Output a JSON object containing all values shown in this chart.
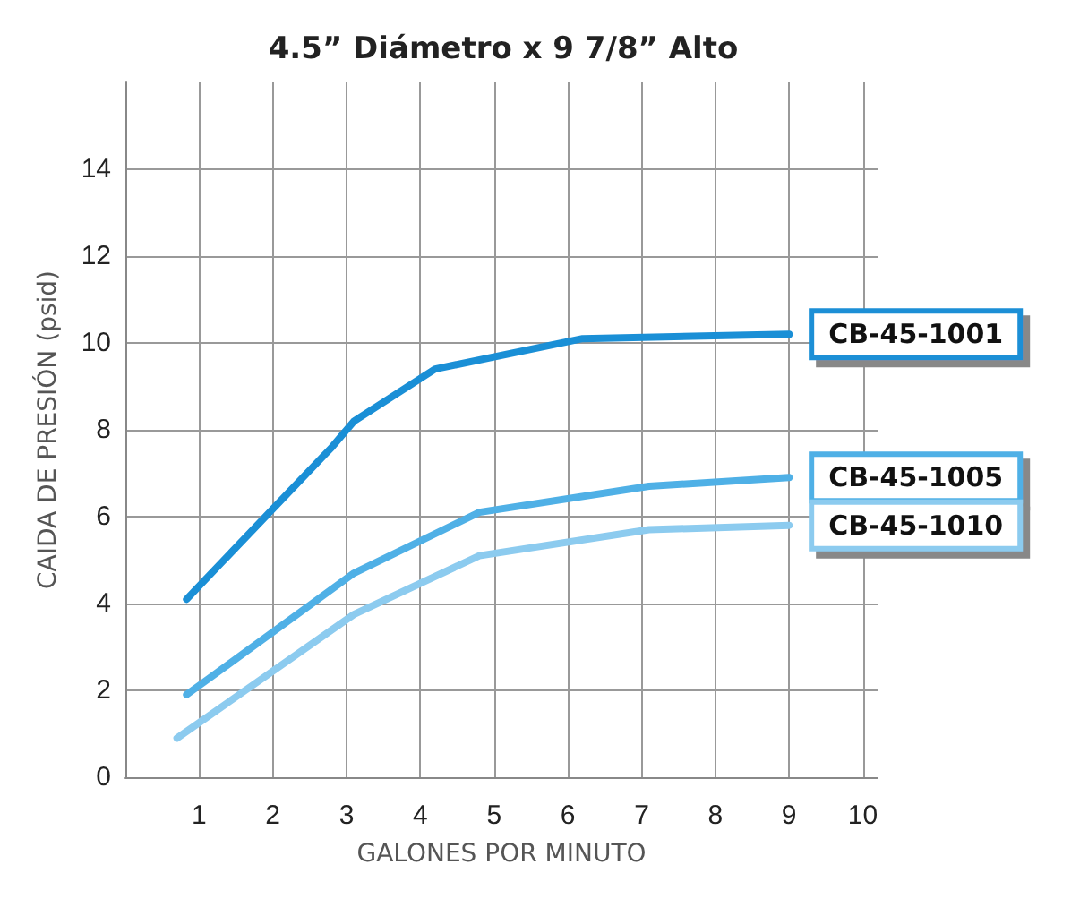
{
  "chart_data": {
    "type": "line",
    "title": "4.5” Diámetro x 9 7/8” Alto",
    "xlabel": "GALONES POR MINUTO",
    "ylabel": "CAIDA DE PRESIÓN (psid)",
    "xlim": [
      0,
      10.2
    ],
    "xticks": [
      1,
      2,
      3,
      4,
      5,
      6,
      7,
      8,
      9,
      10
    ],
    "ylim": [
      0,
      16
    ],
    "yticks": [
      0,
      2,
      4,
      6,
      8,
      10,
      12,
      14
    ],
    "grid": true,
    "legend": false,
    "marker": "none",
    "line_style": "solid",
    "series": [
      {
        "name": "CB-45-1001",
        "color": "#1a8fd6",
        "x": [
          0.83,
          2.8,
          3.1,
          4.2,
          6.2,
          9.0
        ],
        "values": [
          4.1,
          7.6,
          8.2,
          9.4,
          10.1,
          10.2
        ]
      },
      {
        "name": "CB-45-1005",
        "color": "#4fb0e6",
        "x": [
          0.83,
          3.1,
          4.8,
          7.1,
          9.0
        ],
        "values": [
          1.9,
          4.7,
          6.1,
          6.7,
          6.9
        ]
      },
      {
        "name": "CB-45-1010",
        "color": "#8ccbef",
        "x": [
          0.7,
          3.1,
          4.8,
          7.1,
          9.0
        ],
        "values": [
          0.9,
          3.75,
          5.1,
          5.7,
          5.8
        ]
      }
    ]
  }
}
